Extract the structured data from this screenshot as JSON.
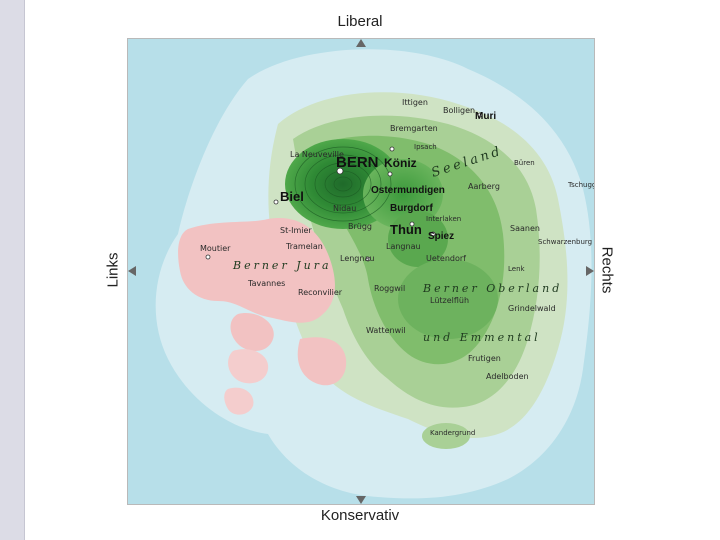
{
  "axes": {
    "top": "Liberal",
    "bottom": "Konservativ",
    "left": "Links",
    "right": "Rechts"
  },
  "map": {
    "regions": {
      "seeland": "Seeland",
      "berner_jura": "Berner Jura",
      "berner_oberland": "Berner Oberland",
      "emmental": "und Emmental"
    },
    "places": {
      "bern": "BERN",
      "koeniz": "Köniz",
      "ostermundigen": "Ostermundigen",
      "biel": "Biel",
      "thun": "Thun",
      "burgdorf": "Burgdorf",
      "spiez": "Spiez",
      "ittigen": "Ittigen",
      "zollikofen": "Zollikofen",
      "bolligen": "Bolligen",
      "muri": "Muri",
      "bremgarten": "Bremgarten",
      "ipsach": "Ipsach",
      "la_neuveville": "La Neuveville",
      "nidau": "Nidau",
      "bruegg": "Brügg",
      "interlaken": "Interlaken",
      "langnau": "Langnau",
      "lengnau": "Lengnau",
      "uetendorf": "Uetendorf",
      "saanen": "Saanen",
      "moutier": "Moutier",
      "st_imier": "St-Imier",
      "tramelan": "Tramelan",
      "tavannes": "Tavannes",
      "reconvilier": "Reconvilier",
      "roggwil": "Roggwil",
      "wattenwil": "Wattenwil",
      "luetzelflueh": "Lützelflüh",
      "grindelwald": "Grindelwald",
      "adelboden": "Adelboden",
      "frutigen": "Frutigen",
      "aarberg": "Aarberg",
      "bueren": "Büren",
      "tschugg": "Tschugg",
      "lenk": "Lenk",
      "schwarzenburg": "Schwarzenburg",
      "kandergrund": "Kandergrund"
    }
  }
}
